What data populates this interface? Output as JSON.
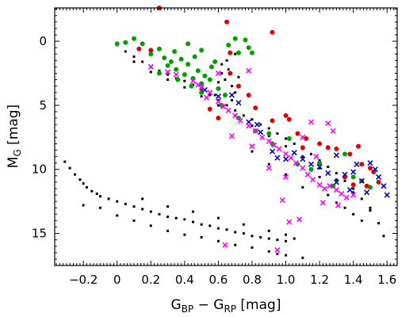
{
  "chart_data": {
    "type": "scatter",
    "title": "",
    "xlabel": {
      "main": "G",
      "sub1": "BP",
      "mid": " − G",
      "sub2": "RP",
      "unit": " [mag]"
    },
    "ylabel": {
      "main": "M",
      "sub": "G",
      "unit": " [mag]"
    },
    "xlim": [
      -0.37,
      1.66
    ],
    "ylim": [
      17.5,
      -2.6
    ],
    "y_inverted": true,
    "grid": false,
    "legend": "none",
    "x_ticks": [
      {
        "v": -0.2,
        "label": "−0.2"
      },
      {
        "v": 0,
        "label": "0"
      },
      {
        "v": 0.2,
        "label": "0.2"
      },
      {
        "v": 0.4,
        "label": "0.4"
      },
      {
        "v": 0.6,
        "label": "0.6"
      },
      {
        "v": 0.8,
        "label": "0.8"
      },
      {
        "v": 1.0,
        "label": "1.0"
      },
      {
        "v": 1.2,
        "label": "1.2"
      },
      {
        "v": 1.4,
        "label": "1.4"
      },
      {
        "v": 1.6,
        "label": "1.6"
      }
    ],
    "y_ticks": [
      {
        "v": 0,
        "label": "0"
      },
      {
        "v": 5,
        "label": "5"
      },
      {
        "v": 10,
        "label": "10"
      },
      {
        "v": 15,
        "label": "15"
      }
    ],
    "series": [
      {
        "marker": "square",
        "color": "#000000",
        "points": [
          [
            -0.31,
            9.4
          ],
          [
            -0.28,
            9.9
          ],
          [
            -0.25,
            10.4
          ],
          [
            -0.22,
            10.8
          ],
          [
            -0.2,
            11.1
          ],
          [
            -0.18,
            11.4
          ],
          [
            -0.15,
            11.7
          ],
          [
            -0.12,
            11.9
          ],
          [
            -0.1,
            12.1
          ],
          [
            -0.05,
            12.3
          ],
          [
            0.0,
            12.5
          ],
          [
            0.05,
            12.7
          ],
          [
            0.1,
            12.9
          ],
          [
            0.15,
            13.1
          ],
          [
            0.2,
            13.3
          ],
          [
            0.25,
            13.5
          ],
          [
            0.3,
            13.7
          ],
          [
            0.35,
            13.8
          ],
          [
            0.4,
            13.9
          ],
          [
            0.45,
            14.1
          ],
          [
            0.5,
            14.3
          ],
          [
            0.55,
            14.4
          ],
          [
            0.6,
            14.6
          ],
          [
            0.65,
            14.7
          ],
          [
            0.7,
            14.9
          ],
          [
            0.75,
            15.0
          ],
          [
            0.8,
            15.2
          ],
          [
            0.85,
            15.3
          ],
          [
            0.9,
            15.4
          ],
          [
            0.95,
            15.5
          ],
          [
            1.0,
            15.6
          ],
          [
            1.05,
            15.4
          ],
          [
            -0.2,
            12.8
          ],
          [
            -0.1,
            13.0
          ],
          [
            0.0,
            13.6
          ],
          [
            0.1,
            14.0
          ],
          [
            0.2,
            14.4
          ],
          [
            0.3,
            14.8
          ],
          [
            0.4,
            15.1
          ],
          [
            0.5,
            15.3
          ],
          [
            0.6,
            15.6
          ],
          [
            0.7,
            15.9
          ],
          [
            0.8,
            16.1
          ],
          [
            0.9,
            16.4
          ],
          [
            1.0,
            16.7
          ],
          [
            1.1,
            16.9
          ],
          [
            0.15,
            12.3
          ],
          [
            0.3,
            12.9
          ],
          [
            0.45,
            13.3
          ],
          [
            0.6,
            13.8
          ],
          [
            0.75,
            14.3
          ],
          [
            0.9,
            14.8
          ],
          [
            1.0,
            15.1
          ],
          [
            0.0,
            0.3
          ],
          [
            0.05,
            0.8
          ],
          [
            0.1,
            1.2
          ],
          [
            0.15,
            1.6
          ],
          [
            0.2,
            2.0
          ],
          [
            0.25,
            2.3
          ],
          [
            0.3,
            2.6
          ],
          [
            0.35,
            2.9
          ],
          [
            0.4,
            3.1
          ],
          [
            0.45,
            3.4
          ],
          [
            0.5,
            3.8
          ],
          [
            0.55,
            4.2
          ],
          [
            0.6,
            4.6
          ],
          [
            0.65,
            5.0
          ],
          [
            0.7,
            5.4
          ],
          [
            0.75,
            5.8
          ],
          [
            0.8,
            6.1
          ],
          [
            0.85,
            6.5
          ],
          [
            0.9,
            6.8
          ],
          [
            0.95,
            7.2
          ],
          [
            1.0,
            7.6
          ],
          [
            1.05,
            8.0
          ],
          [
            1.1,
            8.4
          ],
          [
            1.15,
            8.8
          ],
          [
            1.2,
            9.3
          ],
          [
            1.25,
            9.8
          ],
          [
            1.3,
            10.3
          ],
          [
            1.35,
            10.9
          ],
          [
            1.4,
            11.5
          ],
          [
            1.45,
            12.3
          ],
          [
            1.5,
            13.2
          ],
          [
            1.55,
            14.2
          ],
          [
            1.58,
            15.2
          ],
          [
            0.1,
            1.6
          ],
          [
            0.2,
            2.4
          ],
          [
            0.3,
            3.0
          ],
          [
            0.4,
            3.6
          ],
          [
            0.5,
            4.3
          ],
          [
            0.6,
            5.0
          ],
          [
            0.7,
            5.8
          ],
          [
            0.8,
            6.6
          ],
          [
            0.9,
            7.4
          ],
          [
            1.0,
            8.2
          ],
          [
            1.1,
            9.0
          ],
          [
            1.2,
            9.9
          ],
          [
            1.3,
            10.8
          ],
          [
            1.4,
            11.8
          ],
          [
            1.5,
            13.0
          ],
          [
            0.62,
            2.5
          ],
          [
            0.64,
            3.0
          ],
          [
            0.66,
            2.2
          ],
          [
            0.68,
            3.5
          ],
          [
            0.65,
            1.5
          ],
          [
            0.7,
            4.0
          ],
          [
            0.58,
            4.2
          ],
          [
            0.62,
            1.8
          ],
          [
            0.7,
            1.0
          ],
          [
            0.72,
            2.8
          ],
          [
            0.6,
            3.2
          ],
          [
            0.68,
            4.6
          ],
          [
            1.25,
            12.0
          ],
          [
            1.3,
            12.6
          ],
          [
            1.35,
            13.0
          ],
          [
            1.4,
            13.5
          ],
          [
            1.45,
            14.0
          ],
          [
            1.1,
            11.4
          ],
          [
            1.2,
            10.6
          ],
          [
            1.0,
            10.4
          ],
          [
            0.9,
            9.6
          ],
          [
            0.8,
            8.6
          ],
          [
            0.95,
            16.6
          ]
        ]
      },
      {
        "marker": "circle",
        "color": "#00a000",
        "points": [
          [
            0.0,
            0.2
          ],
          [
            0.05,
            0.1
          ],
          [
            0.1,
            -0.2
          ],
          [
            0.15,
            0.2
          ],
          [
            0.2,
            1.0
          ],
          [
            0.25,
            0.6
          ],
          [
            0.28,
            1.3
          ],
          [
            0.3,
            1.9
          ],
          [
            0.32,
            1.6
          ],
          [
            0.35,
            2.2
          ],
          [
            0.38,
            1.4
          ],
          [
            0.4,
            2.6
          ],
          [
            0.42,
            1.8
          ],
          [
            0.45,
            2.9
          ],
          [
            0.48,
            2.3
          ],
          [
            0.5,
            3.3
          ],
          [
            0.52,
            2.7
          ],
          [
            0.55,
            3.0
          ],
          [
            0.58,
            1.6
          ],
          [
            0.6,
            3.7
          ],
          [
            0.36,
            3.0
          ],
          [
            0.44,
            3.5
          ],
          [
            0.46,
            1.2
          ],
          [
            0.5,
            4.0
          ],
          [
            0.34,
            0.8
          ],
          [
            0.42,
            0.2
          ],
          [
            0.5,
            0.7
          ],
          [
            0.56,
            2.0
          ],
          [
            0.66,
            0.3
          ],
          [
            0.7,
            -0.2
          ],
          [
            0.72,
            0.9
          ],
          [
            0.78,
            0.5
          ],
          [
            0.76,
            -0.1
          ],
          [
            0.8,
            0.9
          ],
          [
            0.64,
            4.2
          ],
          [
            0.62,
            5.0
          ],
          [
            0.72,
            6.0
          ],
          [
            0.9,
            7.2
          ],
          [
            1.02,
            7.6
          ],
          [
            1.07,
            9.6
          ],
          [
            1.2,
            9.5
          ],
          [
            1.35,
            8.8
          ],
          [
            1.4,
            10.6
          ],
          [
            1.45,
            10.9
          ],
          [
            1.5,
            11.4
          ],
          [
            0.82,
            7.0
          ],
          [
            0.92,
            8.0
          ],
          [
            1.28,
            11.3
          ],
          [
            1.15,
            10.0
          ],
          [
            0.25,
            2.5
          ]
        ]
      },
      {
        "marker": "circle",
        "color": "#e00000",
        "points": [
          [
            0.25,
            -2.6
          ],
          [
            0.65,
            -1.5
          ],
          [
            0.92,
            -0.7
          ],
          [
            0.13,
            0.6
          ],
          [
            0.2,
            0.7
          ],
          [
            0.67,
            0.9
          ],
          [
            0.67,
            2.5
          ],
          [
            0.72,
            3.5
          ],
          [
            0.78,
            4.2
          ],
          [
            0.82,
            5.2
          ],
          [
            0.55,
            5.3
          ],
          [
            0.6,
            6.0
          ],
          [
            0.92,
            6.2
          ],
          [
            1.0,
            5.8
          ],
          [
            1.02,
            6.1
          ],
          [
            1.07,
            7.2
          ],
          [
            1.12,
            7.6
          ],
          [
            1.2,
            8.0
          ],
          [
            1.3,
            8.4
          ],
          [
            1.38,
            8.8
          ],
          [
            1.43,
            8.2
          ],
          [
            1.45,
            9.6
          ],
          [
            1.5,
            9.9
          ],
          [
            1.52,
            10.2
          ],
          [
            1.55,
            11.0
          ],
          [
            1.48,
            11.3
          ],
          [
            1.4,
            11.2
          ],
          [
            1.35,
            10.6
          ],
          [
            1.1,
            8.3
          ],
          [
            1.25,
            8.3
          ]
        ]
      },
      {
        "marker": "x",
        "color": "#0000d0",
        "points": [
          [
            0.52,
            3.8
          ],
          [
            0.6,
            4.3
          ],
          [
            0.68,
            4.2
          ],
          [
            0.72,
            4.8
          ],
          [
            0.78,
            6.3
          ],
          [
            0.83,
            6.5
          ],
          [
            0.85,
            7.1
          ],
          [
            0.92,
            8.6
          ],
          [
            0.95,
            9.1
          ],
          [
            1.0,
            9.2
          ],
          [
            1.05,
            8.7
          ],
          [
            1.1,
            9.2
          ],
          [
            1.15,
            9.6
          ],
          [
            1.2,
            9.8
          ],
          [
            1.25,
            10.3
          ],
          [
            1.3,
            8.9
          ],
          [
            1.35,
            10.4
          ],
          [
            1.4,
            10.2
          ],
          [
            1.45,
            10.9
          ],
          [
            1.48,
            11.8
          ],
          [
            1.5,
            9.5
          ],
          [
            1.55,
            10.6
          ],
          [
            1.58,
            11.3
          ],
          [
            1.6,
            12.0
          ],
          [
            1.53,
            10.0
          ],
          [
            1.3,
            11.0
          ],
          [
            1.38,
            11.6
          ],
          [
            1.42,
            9.6
          ]
        ]
      },
      {
        "marker": "x",
        "color": "#ff00ff",
        "points": [
          [
            0.2,
            2.0
          ],
          [
            0.3,
            2.4
          ],
          [
            0.35,
            2.6
          ],
          [
            0.45,
            3.1
          ],
          [
            0.5,
            3.6
          ],
          [
            0.53,
            4.4
          ],
          [
            0.55,
            4.0
          ],
          [
            0.6,
            4.7
          ],
          [
            0.63,
            5.1
          ],
          [
            0.66,
            5.4
          ],
          [
            0.7,
            5.8
          ],
          [
            0.73,
            6.2
          ],
          [
            0.78,
            6.6
          ],
          [
            0.82,
            7.0
          ],
          [
            0.86,
            7.5
          ],
          [
            0.9,
            7.8
          ],
          [
            0.93,
            8.1
          ],
          [
            0.96,
            8.4
          ],
          [
            1.0,
            8.8
          ],
          [
            1.03,
            9.1
          ],
          [
            1.06,
            9.5
          ],
          [
            1.1,
            9.9
          ],
          [
            1.13,
            10.4
          ],
          [
            1.16,
            10.8
          ],
          [
            1.2,
            11.2
          ],
          [
            1.23,
            11.5
          ],
          [
            1.26,
            11.3
          ],
          [
            1.3,
            11.6
          ],
          [
            1.33,
            11.9
          ],
          [
            1.36,
            12.2
          ],
          [
            0.78,
            2.3
          ],
          [
            0.6,
            2.5
          ],
          [
            0.48,
            3.4
          ],
          [
            1.15,
            6.3
          ],
          [
            1.25,
            6.4
          ],
          [
            1.28,
            7.0
          ],
          [
            1.1,
            7.5
          ],
          [
            0.98,
            12.4
          ],
          [
            1.08,
            13.9
          ],
          [
            1.02,
            14.1
          ],
          [
            0.95,
            16.3
          ],
          [
            0.64,
            15.9
          ],
          [
            1.0,
            10.6
          ],
          [
            1.18,
            9.0
          ],
          [
            1.22,
            12.6
          ],
          [
            1.31,
            12.8
          ],
          [
            1.4,
            12.0
          ],
          [
            0.9,
            9.9
          ],
          [
            0.8,
            8.2
          ],
          [
            0.68,
            7.4
          ]
        ]
      }
    ]
  }
}
